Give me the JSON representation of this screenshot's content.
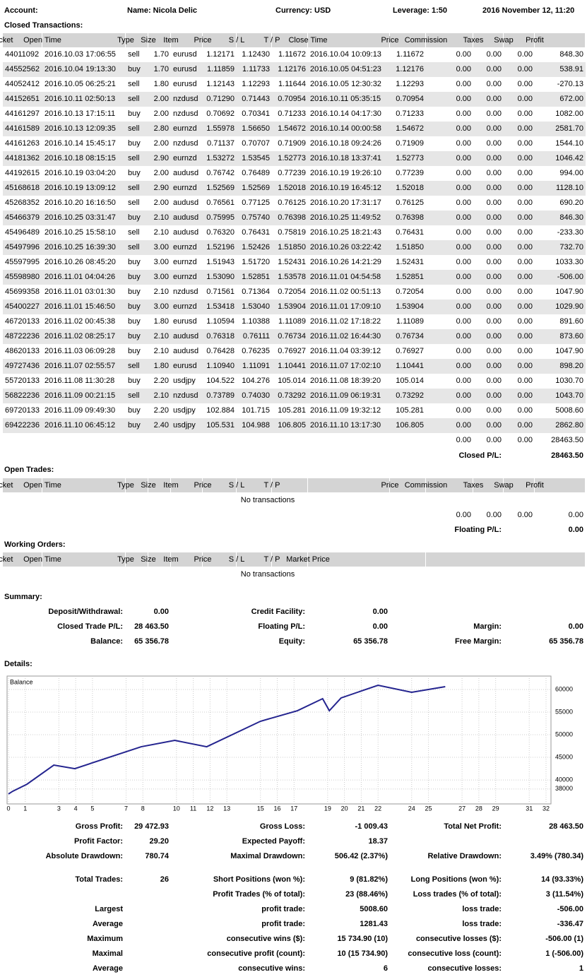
{
  "header": {
    "account_label": "Account:",
    "name": "Name: Nicola Delic",
    "currency": "Currency: USD",
    "leverage": "Leverage: 1:50",
    "date": "2016 November 12, 11:20"
  },
  "closed": {
    "title": "Closed Transactions:",
    "headers": [
      "Ticket",
      "Open Time",
      "Type",
      "Size",
      "Item",
      "Price",
      "S / L",
      "T / P",
      "Close Time",
      "Price",
      "Commission",
      "Taxes",
      "Swap",
      "Profit"
    ],
    "rows": [
      [
        "44011092",
        "2016.10.03 17:06:55",
        "sell",
        "1.70",
        "eurusd",
        "1.12171",
        "1.12430",
        "1.11672",
        "2016.10.04 10:09:13",
        "1.11672",
        "0.00",
        "0.00",
        "0.00",
        "848.30"
      ],
      [
        "44552562",
        "2016.10.04 19:13:30",
        "buy",
        "1.70",
        "eurusd",
        "1.11859",
        "1.11733",
        "1.12176",
        "2016.10.05 04:51:23",
        "1.12176",
        "0.00",
        "0.00",
        "0.00",
        "538.91"
      ],
      [
        "44052412",
        "2016.10.05 06:25:21",
        "sell",
        "1.80",
        "eurusd",
        "1.12143",
        "1.12293",
        "1.11644",
        "2016.10.05 12:30:32",
        "1.12293",
        "0.00",
        "0.00",
        "0.00",
        "-270.13"
      ],
      [
        "44152651",
        "2016.10.11 02:50:13",
        "sell",
        "2.00",
        "nzdusd",
        "0.71290",
        "0.71443",
        "0.70954",
        "2016.10.11 05:35:15",
        "0.70954",
        "0.00",
        "0.00",
        "0.00",
        "672.00"
      ],
      [
        "44161297",
        "2016.10.13 17:15:11",
        "buy",
        "2.00",
        "nzdusd",
        "0.70692",
        "0.70341",
        "0.71233",
        "2016.10.14 04:17:30",
        "0.71233",
        "0.00",
        "0.00",
        "0.00",
        "1082.00"
      ],
      [
        "44161589",
        "2016.10.13 12:09:35",
        "sell",
        "2.80",
        "eurnzd",
        "1.55978",
        "1.56650",
        "1.54672",
        "2016.10.14 00:00:58",
        "1.54672",
        "0.00",
        "0.00",
        "0.00",
        "2581.70"
      ],
      [
        "44161263",
        "2016.10.14 15:45:17",
        "buy",
        "2.00",
        "nzdusd",
        "0.71137",
        "0.70707",
        "0.71909",
        "2016.10.18 09:24:26",
        "0.71909",
        "0.00",
        "0.00",
        "0.00",
        "1544.10"
      ],
      [
        "44181362",
        "2016.10.18 08:15:15",
        "sell",
        "2.90",
        "eurnzd",
        "1.53272",
        "1.53545",
        "1.52773",
        "2016.10.18 13:37:41",
        "1.52773",
        "0.00",
        "0.00",
        "0.00",
        "1046.42"
      ],
      [
        "44192615",
        "2016.10.19 03:04:20",
        "buy",
        "2.00",
        "audusd",
        "0.76742",
        "0.76489",
        "0.77239",
        "2016.10.19 19:26:10",
        "0.77239",
        "0.00",
        "0.00",
        "0.00",
        "994.00"
      ],
      [
        "45168618",
        "2016.10.19 13:09:12",
        "sell",
        "2.90",
        "eurnzd",
        "1.52569",
        "1.52569",
        "1.52018",
        "2016.10.19 16:45:12",
        "1.52018",
        "0.00",
        "0.00",
        "0.00",
        "1128.10"
      ],
      [
        "45268352",
        "2016.10.20 16:16:50",
        "sell",
        "2.00",
        "audusd",
        "0.76561",
        "0.77125",
        "0.76125",
        "2016.10.20 17:31:17",
        "0.76125",
        "0.00",
        "0.00",
        "0.00",
        "690.20"
      ],
      [
        "45466379",
        "2016.10.25 03:31:47",
        "buy",
        "2.10",
        "audusd",
        "0.75995",
        "0.75740",
        "0.76398",
        "2016.10.25 11:49:52",
        "0.76398",
        "0.00",
        "0.00",
        "0.00",
        "846.30"
      ],
      [
        "45496489",
        "2016.10.25 15:58:10",
        "sell",
        "2.10",
        "audusd",
        "0.76320",
        "0.76431",
        "0.75819",
        "2016.10.25 18:21:43",
        "0.76431",
        "0.00",
        "0.00",
        "0.00",
        "-233.30"
      ],
      [
        "45497996",
        "2016.10.25 16:39:30",
        "sell",
        "3.00",
        "eurnzd",
        "1.52196",
        "1.52426",
        "1.51850",
        "2016.10.26 03:22:42",
        "1.51850",
        "0.00",
        "0.00",
        "0.00",
        "732.70"
      ],
      [
        "45597995",
        "2016.10.26 08:45:20",
        "buy",
        "3.00",
        "eurnzd",
        "1.51943",
        "1.51720",
        "1.52431",
        "2016.10.26 14:21:29",
        "1.52431",
        "0.00",
        "0.00",
        "0.00",
        "1033.30"
      ],
      [
        "45598980",
        "2016.11.01 04:04:26",
        "buy",
        "3.00",
        "eurnzd",
        "1.53090",
        "1.52851",
        "1.53578",
        "2016.11.01 04:54:58",
        "1.52851",
        "0.00",
        "0.00",
        "0.00",
        "-506.00"
      ],
      [
        "45699358",
        "2016.11.01 03:01:30",
        "buy",
        "2.10",
        "nzdusd",
        "0.71561",
        "0.71364",
        "0.72054",
        "2016.11.02 00:51:13",
        "0.72054",
        "0.00",
        "0.00",
        "0.00",
        "1047.90"
      ],
      [
        "45400227",
        "2016.11.01 15:46:50",
        "buy",
        "3.00",
        "eurnzd",
        "1.53418",
        "1.53040",
        "1.53904",
        "2016.11.01 17:09:10",
        "1.53904",
        "0.00",
        "0.00",
        "0.00",
        "1029.90"
      ],
      [
        "46720133",
        "2016.11.02 00:45:38",
        "buy",
        "1.80",
        "eurusd",
        "1.10594",
        "1.10388",
        "1.11089",
        "2016.11.02 17:18:22",
        "1.11089",
        "0.00",
        "0.00",
        "0.00",
        "891.60"
      ],
      [
        "48722236",
        "2016.11.02 08:25:17",
        "buy",
        "2.10",
        "audusd",
        "0.76318",
        "0.76111",
        "0.76734",
        "2016.11.02 16:44:30",
        "0.76734",
        "0.00",
        "0.00",
        "0.00",
        "873.60"
      ],
      [
        "48620133",
        "2016.11.03 06:09:28",
        "buy",
        "2.10",
        "audusd",
        "0.76428",
        "0.76235",
        "0.76927",
        "2016.11.04 03:39:12",
        "0.76927",
        "0.00",
        "0.00",
        "0.00",
        "1047.90"
      ],
      [
        "49727436",
        "2016.11.07 02:55:57",
        "sell",
        "1.80",
        "eurusd",
        "1.10940",
        "1.11091",
        "1.10441",
        "2016.11.07 17:02:10",
        "1.10441",
        "0.00",
        "0.00",
        "0.00",
        "898.20"
      ],
      [
        "55720133",
        "2016.11.08 11:30:28",
        "buy",
        "2.20",
        "usdjpy",
        "104.522",
        "104.276",
        "105.014",
        "2016.11.08 18:39:20",
        "105.014",
        "0.00",
        "0.00",
        "0.00",
        "1030.70"
      ],
      [
        "56822236",
        "2016.11.09 00:21:15",
        "sell",
        "2.10",
        "nzdusd",
        "0.73789",
        "0.74030",
        "0.73292",
        "2016.11.09 06:19:31",
        "0.73292",
        "0.00",
        "0.00",
        "0.00",
        "1043.70"
      ],
      [
        "69720133",
        "2016.11.09 09:49:30",
        "buy",
        "2.20",
        "usdjpy",
        "102.884",
        "101.715",
        "105.281",
        "2016.11.09 19:32:12",
        "105.281",
        "0.00",
        "0.00",
        "0.00",
        "5008.60"
      ],
      [
        "69422236",
        "2016.11.10 06:45:12",
        "buy",
        "2.40",
        "usdjpy",
        "105.531",
        "104.988",
        "106.805",
        "2016.11.10 13:17:30",
        "106.805",
        "0.00",
        "0.00",
        "0.00",
        "2862.80"
      ]
    ],
    "totals": [
      "0.00",
      "0.00",
      "0.00",
      "28463.50"
    ],
    "pl_label": "Closed P/L:",
    "pl_value": "28463.50"
  },
  "open": {
    "title": "Open Trades:",
    "headers": [
      "Ticket",
      "Open Time",
      "Type",
      "Size",
      "Item",
      "Price",
      "S / L",
      "T / P",
      "Price",
      "Commission",
      "Taxes",
      "Swap",
      "Profit"
    ],
    "empty": "No transactions",
    "totals": [
      "0.00",
      "0.00",
      "0.00",
      "0.00"
    ],
    "pl_label": "Floating P/L:",
    "pl_value": "0.00"
  },
  "working": {
    "title": "Working Orders:",
    "headers": [
      "Ticket",
      "Open Time",
      "Type",
      "Size",
      "Item",
      "Price",
      "S / L",
      "T / P",
      "Market Price"
    ],
    "empty": "No transactions"
  },
  "summary": {
    "title": "Summary:",
    "rows": [
      [
        {
          "label": "Deposit/Withdrawal:",
          "value": "0.00"
        },
        {
          "label": "Credit Facility:",
          "value": "0.00"
        }
      ],
      [
        {
          "label": "Closed Trade P/L:",
          "value": "28 463.50"
        },
        {
          "label": "Floating P/L:",
          "value": "0.00"
        },
        {
          "label": "Margin:",
          "value": "0.00"
        }
      ],
      [
        {
          "label": "Balance:",
          "value": "65 356.78"
        },
        {
          "label": "Equity:",
          "value": "65 356.78"
        },
        {
          "label": "Free Margin:",
          "value": "65 356.78"
        }
      ]
    ]
  },
  "details": {
    "title": "Details:"
  },
  "chart_data": {
    "type": "line",
    "title": "Balance",
    "color": "#24248f",
    "x": [
      0,
      0.25,
      1.1,
      2.7,
      3.95,
      7.9,
      9.9,
      11.8,
      15,
      17.2,
      18.7,
      19.1,
      19.8,
      22,
      24,
      26
    ],
    "values": [
      36900,
      37500,
      39060,
      43280,
      42500,
      47340,
      48750,
      47340,
      52970,
      55310,
      57970,
      55310,
      58130,
      60940,
      59380,
      60630
    ],
    "xlim": [
      0,
      32
    ],
    "xticks": [
      0,
      1,
      3,
      4,
      5,
      7,
      8,
      10,
      11,
      12,
      13,
      15,
      16,
      17,
      19,
      20,
      21,
      22,
      24,
      25,
      27,
      28,
      29,
      31,
      32
    ],
    "ylim": [
      34700,
      62970
    ],
    "yticks": [
      38000,
      40000,
      45000,
      50000,
      55000,
      60000
    ],
    "grid": true
  },
  "stats": {
    "rows": [
      [
        {
          "label": "Gross Profit:",
          "value": "29 472.93"
        },
        {
          "label": "Gross Loss:",
          "value": "-1 009.43"
        },
        {
          "label": "Total Net Profit:",
          "value": "28 463.50"
        }
      ],
      [
        {
          "label": "Profit Factor:",
          "value": "29.20"
        },
        {
          "label": "Expected Payoff:",
          "value": "18.37"
        }
      ],
      [
        {
          "label": "Absolute Drawdown:",
          "value": "780.74"
        },
        {
          "label": "Maximal Drawdown:",
          "value": "506.42 (2.37%)"
        },
        {
          "label": "Relative Drawdown:",
          "value": "3.49% (780.34)"
        }
      ],
      [
        {
          "label": "Total Trades:",
          "value": "26"
        },
        {
          "label": "Short Positions (won %):",
          "value": "9 (81.82%)"
        },
        {
          "label": "Long Positions (won %):",
          "value": "14 (93.33%)"
        }
      ],
      [
        null,
        {
          "label": "Profit Trades (% of total):",
          "value": "23 (88.46%)"
        },
        {
          "label": "Loss trades (% of total):",
          "value": "3 (11.54%)"
        }
      ],
      [
        {
          "label": "Largest"
        },
        {
          "label": "profit trade:",
          "value": "5008.60"
        },
        {
          "label": "loss trade:",
          "value": "-506.00"
        }
      ],
      [
        {
          "label": "Average"
        },
        {
          "label": "profit trade:",
          "value": "1281.43"
        },
        {
          "label": "loss trade:",
          "value": "-336.47"
        }
      ],
      [
        {
          "label": "Maximum"
        },
        {
          "label": "consecutive wins ($):",
          "value": "15 734.90 (10)"
        },
        {
          "label": "consecutive losses ($):",
          "value": "-506.00 (1)"
        }
      ],
      [
        {
          "label": "Maximal"
        },
        {
          "label": "consecutive profit (count):",
          "value": "10 (15 734.90)"
        },
        {
          "label": "consecutive loss (count):",
          "value": "1 (-506.00)"
        }
      ],
      [
        {
          "label": "Average"
        },
        {
          "label": "consecutive wins:",
          "value": "6"
        },
        {
          "label": "consecutive losses:",
          "value": "1"
        }
      ]
    ]
  }
}
